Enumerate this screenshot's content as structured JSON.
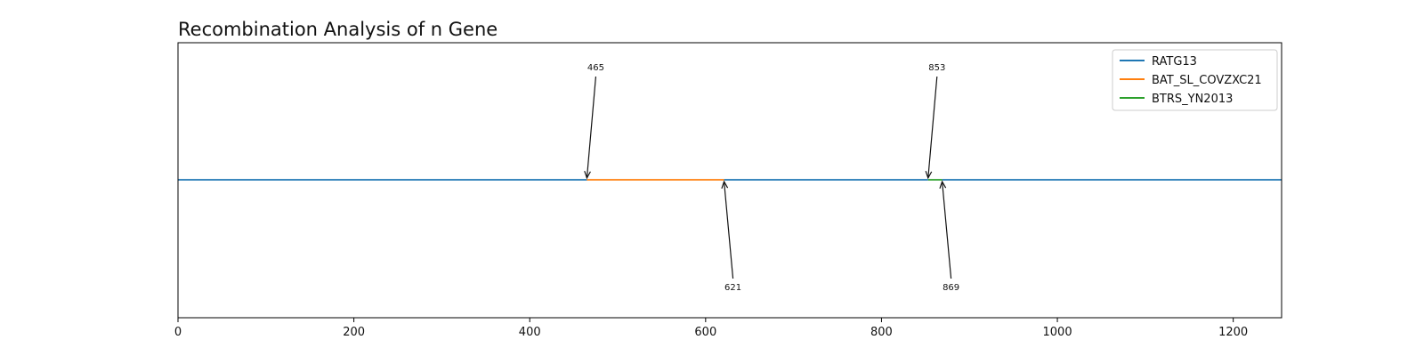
{
  "chart_data": {
    "type": "line",
    "title": "Recombination Analysis of n Gene",
    "xlabel": "",
    "ylabel": "",
    "xlim": [
      0,
      1255
    ],
    "xticks": [
      0,
      200,
      400,
      600,
      800,
      1000,
      1200
    ],
    "grid": false,
    "legend_position": "upper right",
    "legend": [
      {
        "name": "RATG13",
        "color": "#1f77b4"
      },
      {
        "name": "BAT_SL_COVZXC21",
        "color": "#ff7f0e"
      },
      {
        "name": "BTRS_YN2013",
        "color": "#2ca02c"
      }
    ],
    "series": [
      {
        "name": "RATG13",
        "color": "#1f77b4",
        "segments": [
          [
            0,
            465
          ],
          [
            621,
            853
          ],
          [
            869,
            1255
          ]
        ]
      },
      {
        "name": "BAT_SL_COVZXC21",
        "color": "#ff7f0e",
        "segments": [
          [
            465,
            621
          ]
        ]
      },
      {
        "name": "BTRS_YN2013",
        "color": "#2ca02c",
        "segments": [
          [
            853,
            869
          ]
        ]
      }
    ],
    "annotations": [
      {
        "label": "465",
        "x": 465,
        "side": "above"
      },
      {
        "label": "621",
        "x": 621,
        "side": "below"
      },
      {
        "label": "853",
        "x": 853,
        "side": "above"
      },
      {
        "label": "869",
        "x": 869,
        "side": "below"
      }
    ]
  }
}
